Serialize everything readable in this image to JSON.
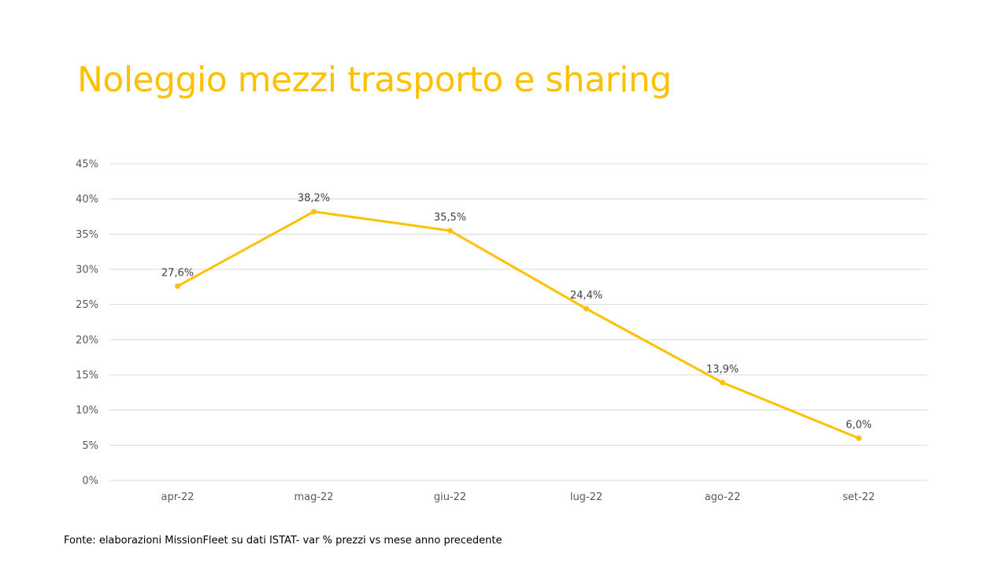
{
  "title": "Noleggio mezzi trasporto e sharing",
  "source_note": "Fonte: elaborazioni MissionFleet su dati ISTAT- var % prezzi vs mese anno precedente",
  "colors": {
    "accent": "#FFC000",
    "grid": "#D9D9D9",
    "axis_text": "#595959",
    "label_text": "#404040"
  },
  "chart_data": {
    "type": "line",
    "categories": [
      "apr-22",
      "mag-22",
      "giu-22",
      "lug-22",
      "ago-22",
      "set-22"
    ],
    "series": [
      {
        "values": [
          27.6,
          38.2,
          35.5,
          24.4,
          13.9,
          6.0
        ],
        "data_labels": [
          "27,6%",
          "38,2%",
          "35,5%",
          "24,4%",
          "13,9%",
          "6,0%"
        ]
      }
    ],
    "ylim": [
      0,
      45
    ],
    "yticks": [
      0,
      5,
      10,
      15,
      20,
      25,
      30,
      35,
      40,
      45
    ],
    "ytick_labels": [
      "0%",
      "5%",
      "10%",
      "15%",
      "20%",
      "25%",
      "30%",
      "35%",
      "40%",
      "45%"
    ],
    "grid": true,
    "legend": "none",
    "markers": true
  }
}
